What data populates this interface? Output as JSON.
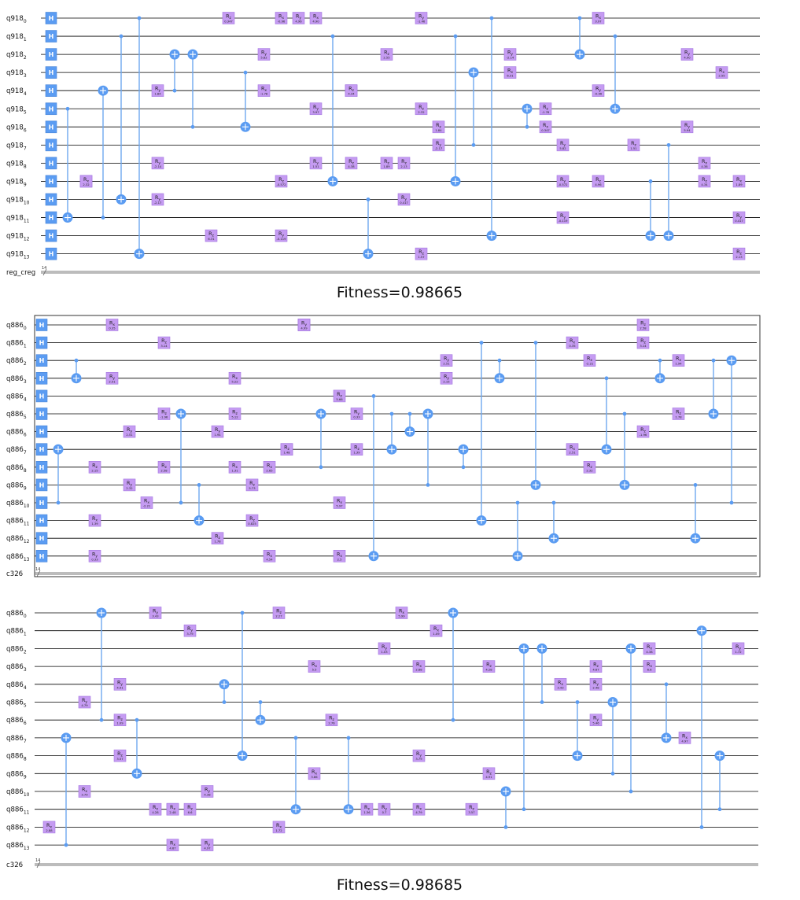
{
  "panels": [
    {
      "qubit_prefix": "q918",
      "classical_label": "reg_creg",
      "classical_width": "14",
      "fitness_label": "Fitness=0.98665",
      "single_qubit_gate_label": "H",
      "rotation_prefix": "R",
      "rotation_axes": [
        "x",
        "y",
        "z"
      ],
      "sample_rotation_params": [
        "-1.46",
        "2.32",
        "-2.17",
        "1.84",
        "-2.14",
        "6.31",
        "0.347",
        "-1.78",
        "5.82",
        "-0.572",
        "-0.119",
        "-0.96",
        "4.96",
        "3.97",
        "1.51",
        "4.90",
        "5.94",
        "4.38",
        "4.34",
        "2.55",
        "1.89",
        "0.417",
        "2.13",
        "1.57"
      ]
    },
    {
      "qubit_prefix": "q886",
      "classical_label": "c326",
      "classical_width": "14",
      "fitness_label": "",
      "single_qubit_gate_label": "H",
      "rotation_prefix": "R",
      "rotation_axes": [
        "x",
        "y",
        "z"
      ],
      "sample_rotation_params": [
        "0.33",
        "1.39",
        "2.15",
        "2.51",
        "0.35",
        "2.51",
        "2.32",
        "-2.21",
        "-1.96",
        "3.14",
        "2.58",
        "1.94",
        "1.78",
        "1.31",
        "5.22",
        "5.12",
        "0.825",
        "5.73",
        "2.65",
        "4.54",
        "4.94",
        "1.48",
        "2.41",
        "5.49",
        "4.99",
        "2.5",
        "5.66",
        "5.97"
      ]
    },
    {
      "qubit_prefix": "q886",
      "classical_label": "c326",
      "classical_width": "14",
      "fitness_label": "Fitness=0.98685",
      "single_qubit_gate_label": "",
      "rotation_prefix": "R",
      "rotation_axes": [
        "x",
        "y",
        "z"
      ],
      "sample_rotation_params": [
        "2.88",
        "3.79",
        "4.79",
        "1.09",
        "3.57",
        "4.91",
        "4.28",
        "3.43",
        "4.67",
        "5.46",
        "2.48",
        "3.79",
        "6.6",
        "4.38",
        "4.97",
        "1.72",
        "2.27",
        "3.86",
        "5.5",
        "2.76",
        "1.36",
        "1.03",
        "0.7",
        "5.99"
      ]
    }
  ]
}
